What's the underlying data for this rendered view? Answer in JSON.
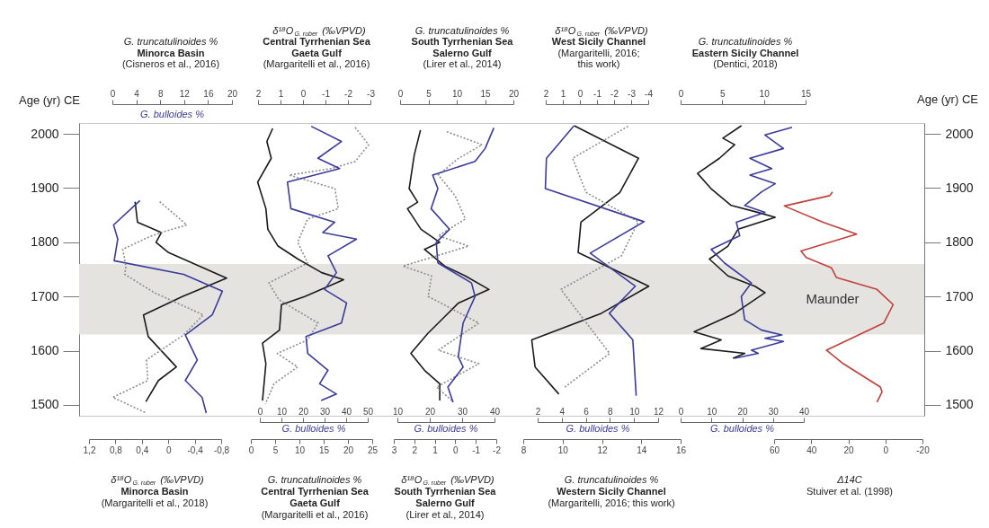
{
  "chart_data": [
    {
      "type": "line",
      "ylabel": "Age (yr) CE",
      "ylim": [
        1480,
        2020
      ],
      "yticks": [
        1500,
        1600,
        1700,
        1800,
        1900,
        2000
      ],
      "bands": [
        {
          "axis": "y",
          "from": 1630,
          "to": 1760,
          "label": "Maunder",
          "color": "#e4e3df"
        }
      ],
      "x2label": "G. truncatulinoides %\nMinorca Basin\n(Cisneros et al., 2016)",
      "x2lim": [
        0,
        20
      ],
      "x2ticks": [
        0,
        4,
        8,
        12,
        16,
        20
      ],
      "xlabel": "δ¹⁸O$_{G. ruber}$(‰VPVD)\nMinorca Basin\n(Margaritelli et al., 2018)",
      "xlim": [
        1.2,
        -0.8
      ],
      "xticks": [
        {
          "value": 1.2,
          "label": "1,2"
        },
        {
          "value": 0.8,
          "label": "0,8"
        },
        {
          "value": 0.4,
          "label": "0,4"
        },
        0,
        {
          "value": -0.4,
          "label": "-0,4"
        },
        {
          "value": -0.8,
          "label": "-0,8"
        }
      ],
      "series": [
        {
          "color": "#1a1a1a",
          "axis": "x2",
          "line_style": "solid",
          "x": [
            3.8,
            4.2,
            8.2,
            7.3,
            9.4,
            19.1,
            11.7,
            5.2,
            6.0,
            10.7,
            7.7,
            5.6
          ],
          "values": [
            1875,
            1837,
            1818,
            1800,
            1781,
            1734,
            1700,
            1666,
            1626,
            1570,
            1545,
            1506
          ]
        },
        {
          "name": "G. bulloides %",
          "color": "#3b3b9c",
          "axis": "x2",
          "line_style": "solid",
          "x": [
            4.6,
            0.2,
            0.9,
            0.3,
            11.9,
            18.4,
            16.7,
            12.2,
            14.2,
            12.2,
            15.0,
            15.7
          ],
          "values": [
            1877,
            1832,
            1806,
            1766,
            1741,
            1710,
            1666,
            1629,
            1583,
            1545,
            1514,
            1485
          ]
        },
        {
          "color": "#8c8c8c",
          "line_style": "dotted",
          "x": [
            0.13,
            -0.28,
            0.11,
            0.31,
            0.69,
            0.64,
            0.66,
            0.21,
            -0.53,
            -0.23,
            0.33,
            0.31,
            0.84,
            0.35
          ],
          "values": [
            1875,
            1832,
            1818,
            1809,
            1787,
            1756,
            1741,
            1707,
            1666,
            1629,
            1583,
            1545,
            1514,
            1486
          ]
        }
      ]
    },
    {
      "type": "line",
      "tick_labels": "x",
      "ylim": [
        1480,
        2020
      ],
      "x2label": "δ¹⁸O$_{G. ruber}$(‰VPVD)\nCentral Tyrrhenian Sea\nGaeta Gulf\n(Margaritelli et al., 2016)",
      "x2lim": [
        2,
        -3
      ],
      "x2ticks": [
        2,
        1,
        0,
        -1,
        -2,
        -3
      ],
      "xlabel": "G. truncatulinoides %\nCentral Tyrrhenian Sea\nGaeta Gulf\n(Margaritelli et al., 2016)",
      "xlim": [
        0,
        25
      ],
      "xticks": [
        0,
        5,
        10,
        15,
        20,
        25
      ],
      "series": [
        {
          "color": "#1a1a1a",
          "line_style": "solid",
          "x": [
            4.5,
            3.3,
            4.2,
            1.4,
            3.1,
            3.5,
            5.6,
            9.7,
            14.6,
            19.1,
            11.1,
            6.3,
            5.9,
            2.4,
            3.1,
            2.4
          ],
          "values": [
            2010,
            1986,
            1955,
            1911,
            1862,
            1824,
            1793,
            1769,
            1744,
            1731,
            1700,
            1685,
            1638,
            1614,
            1576,
            1508
          ]
        },
        {
          "color": "#8c8c8c",
          "axis": "x2",
          "line_style": "dotted",
          "x": [
            -2.32,
            -2.92,
            -2.32,
            -1.27,
            0.61,
            -1.42,
            -1.57,
            -0.21,
            0.24,
            -0.21,
            1.52,
            1.07,
            -0.67,
            -0.21,
            1.14,
            0.24,
            1.29,
            1.67
          ],
          "values": [
            2012,
            1980,
            1949,
            1936,
            1924,
            1899,
            1862,
            1843,
            1800,
            1762,
            1725,
            1694,
            1651,
            1620,
            1595,
            1570,
            1539,
            1502
          ]
        }
      ]
    },
    {
      "type": "line",
      "tick_labels": "x",
      "ylim": [
        1480,
        2020
      ],
      "xlabel": "G. bulloides %",
      "xlim": [
        0,
        50
      ],
      "xticks": [
        0,
        10,
        20,
        30,
        40,
        50
      ],
      "series": [
        {
          "color": "#3b3b9c",
          "line_style": "solid",
          "x": [
            23.8,
            37.8,
            26.9,
            37.0,
            12.8,
            14.4,
            34.7,
            29.2,
            44.8,
            31.6,
            35.5,
            30.0,
            40.2,
            37.8,
            21.4,
            22.2,
            31.6,
            27.7,
            35.5,
            28.4
          ],
          "values": [
            2014,
            1986,
            1955,
            1936,
            1911,
            1862,
            1837,
            1818,
            1806,
            1775,
            1744,
            1713,
            1688,
            1651,
            1626,
            1595,
            1564,
            1539,
            1520,
            1508
          ]
        }
      ]
    },
    {
      "type": "line",
      "tick_labels": "x",
      "ylim": [
        1480,
        2020
      ],
      "x2label": "G. truncatulinoides %\nSouth Tyrrhenian Sea\nSalerno Gulf\n(Lirer et al., 2014)",
      "x2lim": [
        0,
        20
      ],
      "x2ticks": [
        0,
        5,
        10,
        15,
        20
      ],
      "xlabel": "δ¹⁸O$_{G. ruber}$(‰VPVD)\nSouth Tyrrhenian Sea\nSalerno Gulf\n(Lirer et al., 2014)",
      "xlim": [
        3,
        -2
      ],
      "xticks": [
        3,
        2,
        1,
        0,
        -1,
        -2
      ],
      "series": [
        {
          "color": "#1a1a1a",
          "axis": "x2",
          "line_style": "solid",
          "x": [
            3.6,
            2.5,
            1.6,
            3.1,
            1.3,
            3.7,
            7.0,
            4.3,
            7.9,
            11.5,
            15.7,
            10.3,
            7.9,
            4.9,
            1.9,
            4.3,
            7.0,
            7.0
          ],
          "values": [
            2007,
            1961,
            1899,
            1874,
            1862,
            1824,
            1800,
            1787,
            1756,
            1738,
            1713,
            1688,
            1663,
            1632,
            1595,
            1564,
            1539,
            1508
          ]
        },
        {
          "color": "#8c8c8c",
          "line_style": "dotted",
          "x": [
            0.42,
            -1.31,
            -0.16,
            0.83,
            0.01,
            -0.49,
            0.83,
            -0.65,
            2.56,
            1.16,
            1.32,
            -1.15,
            0.83,
            -1.15,
            0.91,
            0.17
          ],
          "values": [
            2004,
            1980,
            1955,
            1924,
            1886,
            1843,
            1812,
            1793,
            1756,
            1738,
            1700,
            1651,
            1601,
            1576,
            1533,
            1508
          ]
        }
      ]
    },
    {
      "type": "line",
      "tick_labels": "x",
      "ylim": [
        1480,
        2020
      ],
      "xlabel": "G. bulloides %",
      "xlim": [
        10,
        40
      ],
      "xticks": [
        10,
        20,
        30,
        40
      ],
      "series": [
        {
          "color": "#3b3b9c",
          "line_style": "solid",
          "x": [
            39.8,
            37.1,
            34.0,
            20.9,
            22.5,
            20.4,
            26.1,
            22.0,
            22.5,
            32.9,
            34.0,
            30.3,
            28.8,
            30.3,
            25.6,
            27.2
          ],
          "values": [
            2011,
            1973,
            1949,
            1924,
            1899,
            1862,
            1824,
            1800,
            1762,
            1725,
            1700,
            1651,
            1589,
            1570,
            1533,
            1505
          ]
        }
      ]
    },
    {
      "type": "line",
      "tick_labels": "x",
      "ylim": [
        1480,
        2020
      ],
      "x2label": "δ¹⁸O$_{G. ruber}$(‰VPVD)\nWest Sicily Channel\n(Margaritelli, 2016;\nthis work)",
      "x2lim": [
        2,
        -4
      ],
      "x2ticks": [
        2,
        1,
        0,
        -1,
        -2,
        -3,
        -4
      ],
      "xlabel": "G. truncatulinoides %\nWestern Sicily Channel\n(Margaritelli, 2016; this work)",
      "xlim": [
        8,
        16
      ],
      "xticks": [
        8,
        10,
        12,
        14,
        16
      ],
      "series": [
        {
          "color": "#1a1a1a",
          "line_style": "solid",
          "x": [
            10.59,
            13.86,
            12.91,
            10.93,
            10.79,
            14.38,
            11.97,
            8.43,
            8.6,
            9.81
          ],
          "values": [
            2015,
            1955,
            1892,
            1837,
            1781,
            1719,
            1669,
            1620,
            1570,
            1520
          ]
        },
        {
          "color": "#8c8c8c",
          "axis": "x2",
          "line_style": "dotted",
          "x": [
            -2.82,
            0.43,
            -0.36,
            -3.41,
            -2.43,
            1.11,
            -1.74,
            0.88
          ],
          "values": [
            2014,
            1955,
            1892,
            1838,
            1775,
            1713,
            1595,
            1533
          ]
        }
      ]
    },
    {
      "type": "line",
      "tick_labels": "x",
      "ylim": [
        1480,
        2020
      ],
      "xlabel": "G. bulloides %",
      "xlim": [
        2,
        12
      ],
      "xticks": [
        2,
        4,
        6,
        8,
        10,
        12
      ],
      "series": [
        {
          "color": "#3b3b9c",
          "line_style": "solid",
          "x": [
            5.02,
            2.73,
            2.64,
            10.83,
            6.36,
            10.1,
            7.95,
            9.9,
            10.18
          ],
          "values": [
            2015,
            1955,
            1899,
            1838,
            1780,
            1719,
            1669,
            1620,
            1517
          ]
        }
      ]
    },
    {
      "type": "line",
      "tick_labels": "x",
      "ylim": [
        1480,
        2020
      ],
      "x2label": "G. truncatulinoides %\nEastern Sicily Channel\n(Dentici, 2018)",
      "x2lim": [
        0,
        15
      ],
      "x2ticks": [
        0,
        5,
        10,
        15
      ],
      "xlabel": "G. bulloides %",
      "xlim": [
        0,
        40
      ],
      "xticks": [
        0,
        10,
        20,
        30,
        40
      ],
      "series": [
        {
          "color": "#1a1a1a",
          "axis": "x2",
          "line_style": "solid",
          "x": [
            7.3,
            5.07,
            6.49,
            4.66,
            2.03,
            3.65,
            6.08,
            9.32,
            11.35,
            6.89,
            5.68,
            3.45,
            5.68,
            8.92,
            10.14,
            6.49,
            1.62,
            4.87,
            2.43,
            7.7,
            6.28
          ],
          "values": [
            2015,
            1992,
            1980,
            1955,
            1927,
            1899,
            1868,
            1855,
            1846,
            1824,
            1793,
            1769,
            1738,
            1719,
            1707,
            1669,
            1635,
            1620,
            1604,
            1595,
            1586
          ]
        },
        {
          "color": "#3b3b9c",
          "line_style": "solid",
          "x": [
            36.2,
            27.4,
            33.4,
            22.5,
            29.6,
            22.5,
            30.7,
            26.3,
            20.8,
            27.4,
            18.1,
            19.2,
            9.9,
            14.2,
            23.0,
            19.7,
            20.8,
            26.3,
            32.9,
            27.4,
            33.4,
            23.0,
            25.2,
            17.5
          ],
          "values": [
            2012,
            1998,
            1973,
            1955,
            1936,
            1924,
            1908,
            1893,
            1868,
            1855,
            1837,
            1812,
            1787,
            1762,
            1725,
            1700,
            1657,
            1638,
            1629,
            1623,
            1617,
            1601,
            1595,
            1586
          ]
        }
      ]
    },
    {
      "type": "line",
      "y2label": "Age (yr) CE",
      "y2lim": [
        1480,
        2020
      ],
      "y2ticks": [
        1500,
        1600,
        1700,
        1800,
        1900,
        2000
      ],
      "xlabel": "Δ14C\nStuiver et al. (1998)",
      "xlim": [
        60,
        -20
      ],
      "xticks": [
        60,
        40,
        20,
        0,
        -20
      ],
      "series": [
        {
          "color": "#c0403a",
          "axis": "y2",
          "line_style": "solid",
          "x": [
            28.5,
            30.0,
            54.5,
            33.6,
            15.5,
            45.5,
            42.7,
            29.1,
            26.4,
            4.5,
            -4.2,
            0.9,
            31.8,
            22.7,
            2.7,
            1.8,
            4.5
          ],
          "values": [
            1893,
            1886,
            1867,
            1837,
            1815,
            1784,
            1772,
            1753,
            1735,
            1713,
            1685,
            1651,
            1601,
            1576,
            1533,
            1524,
            1505
          ]
        }
      ]
    }
  ]
}
